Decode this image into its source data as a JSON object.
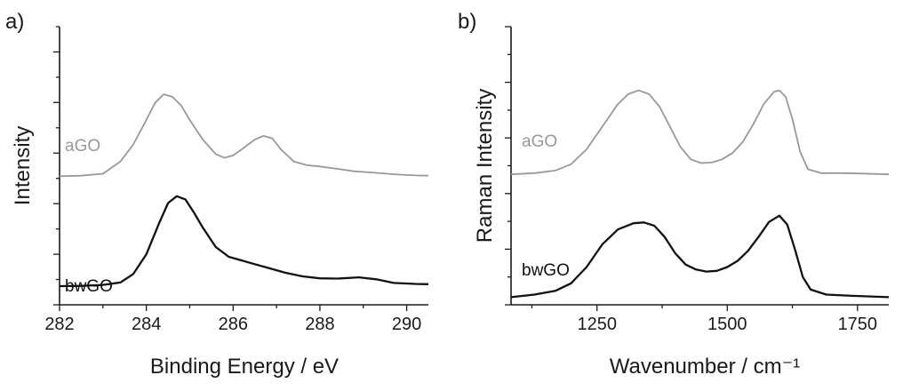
{
  "colors": {
    "axis": "#1a1a1a",
    "aGO": "#999999",
    "bwGO": "#111111"
  },
  "chart_data": [
    {
      "type": "line",
      "panel_label": "a)",
      "xlabel": "Binding Energy / eV",
      "ylabel": "Intensity",
      "xlim": [
        282,
        290.5
      ],
      "ylim": [
        0,
        100
      ],
      "y_ticks_labeled": false,
      "x_ticks": [
        282,
        284,
        286,
        288,
        290
      ],
      "x_tick_labels": [
        "282",
        "284",
        "286",
        "288",
        "290"
      ],
      "series": [
        {
          "name": "aGO",
          "color": "#999999",
          "points": [
            [
              282.0,
              49
            ],
            [
              282.5,
              49.2
            ],
            [
              283.0,
              50
            ],
            [
              283.4,
              55
            ],
            [
              283.7,
              62
            ],
            [
              284.0,
              72
            ],
            [
              284.2,
              79
            ],
            [
              284.4,
              82.5
            ],
            [
              284.6,
              81.5
            ],
            [
              284.8,
              78
            ],
            [
              285.0,
              72
            ],
            [
              285.3,
              64
            ],
            [
              285.6,
              58
            ],
            [
              285.8,
              56.5
            ],
            [
              286.0,
              57.5
            ],
            [
              286.2,
              60
            ],
            [
              286.5,
              64
            ],
            [
              286.7,
              65.5
            ],
            [
              286.9,
              64.5
            ],
            [
              287.1,
              60
            ],
            [
              287.4,
              55
            ],
            [
              287.7,
              53.5
            ],
            [
              288.0,
              53
            ],
            [
              288.4,
              52
            ],
            [
              288.8,
              51
            ],
            [
              289.2,
              50.5
            ],
            [
              289.7,
              49.8
            ],
            [
              290.2,
              49.3
            ],
            [
              290.5,
              49.2
            ]
          ]
        },
        {
          "name": "bwGO",
          "color": "#111111",
          "points": [
            [
              282.0,
              4
            ],
            [
              282.5,
              4.1
            ],
            [
              283.0,
              4.5
            ],
            [
              283.4,
              5.5
            ],
            [
              283.7,
              9
            ],
            [
              284.0,
              17
            ],
            [
              284.3,
              30
            ],
            [
              284.5,
              38
            ],
            [
              284.7,
              40.8
            ],
            [
              284.9,
              39.5
            ],
            [
              285.1,
              34
            ],
            [
              285.3,
              28
            ],
            [
              285.6,
              20
            ],
            [
              285.9,
              16
            ],
            [
              286.2,
              14.5
            ],
            [
              286.5,
              13
            ],
            [
              286.8,
              11.5
            ],
            [
              287.2,
              9.5
            ],
            [
              287.6,
              8
            ],
            [
              288.0,
              7.2
            ],
            [
              288.4,
              7.1
            ],
            [
              288.9,
              7.6
            ],
            [
              289.3,
              6.8
            ],
            [
              289.7,
              5.3
            ],
            [
              290.2,
              4.9
            ],
            [
              290.5,
              4.8
            ]
          ]
        }
      ]
    },
    {
      "type": "line",
      "panel_label": "b)",
      "xlabel": "Wavenumber / cm⁻¹",
      "ylabel": "Raman Intensity",
      "xlim": [
        1085,
        1810
      ],
      "ylim": [
        0,
        100
      ],
      "y_ticks_labeled": false,
      "x_ticks": [
        1250,
        1500,
        1750
      ],
      "x_tick_labels": [
        "1250",
        "1500",
        "1750"
      ],
      "series": [
        {
          "name": "aGO",
          "color": "#999999",
          "points": [
            [
              1085,
              51
            ],
            [
              1130,
              51.5
            ],
            [
              1170,
              52.5
            ],
            [
              1200,
              55
            ],
            [
              1230,
              61
            ],
            [
              1260,
              70
            ],
            [
              1290,
              79
            ],
            [
              1310,
              83
            ],
            [
              1330,
              84.5
            ],
            [
              1350,
              83
            ],
            [
              1370,
              78
            ],
            [
              1390,
              70
            ],
            [
              1410,
              62
            ],
            [
              1430,
              57
            ],
            [
              1450,
              55.5
            ],
            [
              1470,
              55.7
            ],
            [
              1490,
              57
            ],
            [
              1510,
              59.5
            ],
            [
              1530,
              64
            ],
            [
              1550,
              71
            ],
            [
              1570,
              79
            ],
            [
              1590,
              84
            ],
            [
              1600,
              84.5
            ],
            [
              1612,
              82
            ],
            [
              1625,
              73
            ],
            [
              1640,
              60
            ],
            [
              1655,
              53
            ],
            [
              1680,
              51.5
            ],
            [
              1720,
              51.5
            ],
            [
              1760,
              51.3
            ],
            [
              1810,
              51
            ]
          ]
        },
        {
          "name": "bwGO",
          "color": "#111111",
          "points": [
            [
              1085,
              2
            ],
            [
              1130,
              3
            ],
            [
              1170,
              4.5
            ],
            [
              1200,
              7.5
            ],
            [
              1230,
              14
            ],
            [
              1260,
              23
            ],
            [
              1290,
              29
            ],
            [
              1320,
              31.5
            ],
            [
              1340,
              31.8
            ],
            [
              1360,
              30.5
            ],
            [
              1380,
              26
            ],
            [
              1400,
              19.5
            ],
            [
              1420,
              15
            ],
            [
              1440,
              13
            ],
            [
              1460,
              12.2
            ],
            [
              1480,
              12.5
            ],
            [
              1500,
              14
            ],
            [
              1520,
              16.5
            ],
            [
              1540,
              20.5
            ],
            [
              1560,
              26
            ],
            [
              1580,
              32
            ],
            [
              1600,
              34.5
            ],
            [
              1615,
              31
            ],
            [
              1630,
              21
            ],
            [
              1645,
              10
            ],
            [
              1660,
              5
            ],
            [
              1690,
              3
            ],
            [
              1740,
              2.5
            ],
            [
              1810,
              2
            ]
          ]
        }
      ]
    }
  ]
}
